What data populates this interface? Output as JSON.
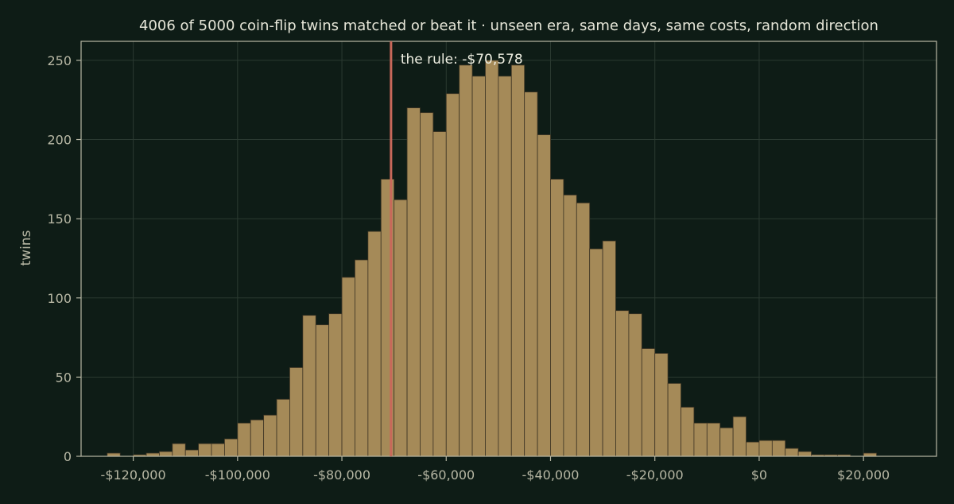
{
  "colors": {
    "background": "#0e1c16",
    "bar_fill": "#a58a58",
    "bar_edge": "#3d3424",
    "rule_line": "#c8685a",
    "axis": "#b7b7a4",
    "grid": "#2b3a31",
    "text": "#e6e6d8"
  },
  "chart_data": {
    "type": "bar",
    "subtype": "histogram",
    "title": "4006 of 5000 coin-flip twins matched or beat it  ·  unseen era, same days, same costs, random direction",
    "xlabel": "",
    "ylabel": "twins",
    "xlim": [
      -130000,
      34000
    ],
    "ylim": [
      0,
      262
    ],
    "grid": true,
    "bin_start": -125000,
    "bin_width": 2500,
    "values": [
      2,
      0,
      1,
      2,
      3,
      8,
      4,
      8,
      8,
      11,
      21,
      23,
      26,
      36,
      56,
      89,
      83,
      90,
      113,
      124,
      142,
      175,
      162,
      220,
      217,
      205,
      229,
      247,
      240,
      250,
      240,
      247,
      230,
      203,
      175,
      165,
      160,
      131,
      136,
      92,
      90,
      68,
      65,
      46,
      31,
      21,
      21,
      18,
      25,
      9,
      10,
      10,
      5,
      3,
      1,
      1,
      1,
      0,
      2
    ],
    "x_ticks": [
      -120000,
      -100000,
      -80000,
      -60000,
      -40000,
      -20000,
      0,
      20000
    ],
    "x_tick_labels": [
      "-$120,000",
      "-$100,000",
      "-$80,000",
      "-$60,000",
      "-$40,000",
      "-$20,000",
      "$0",
      "$20,000"
    ],
    "y_ticks": [
      0,
      50,
      100,
      150,
      200,
      250
    ],
    "y_tick_labels": [
      "0",
      "50",
      "100",
      "150",
      "200",
      "250"
    ],
    "reference_line": {
      "x": -70578,
      "label": "the rule: -$70,578"
    }
  }
}
